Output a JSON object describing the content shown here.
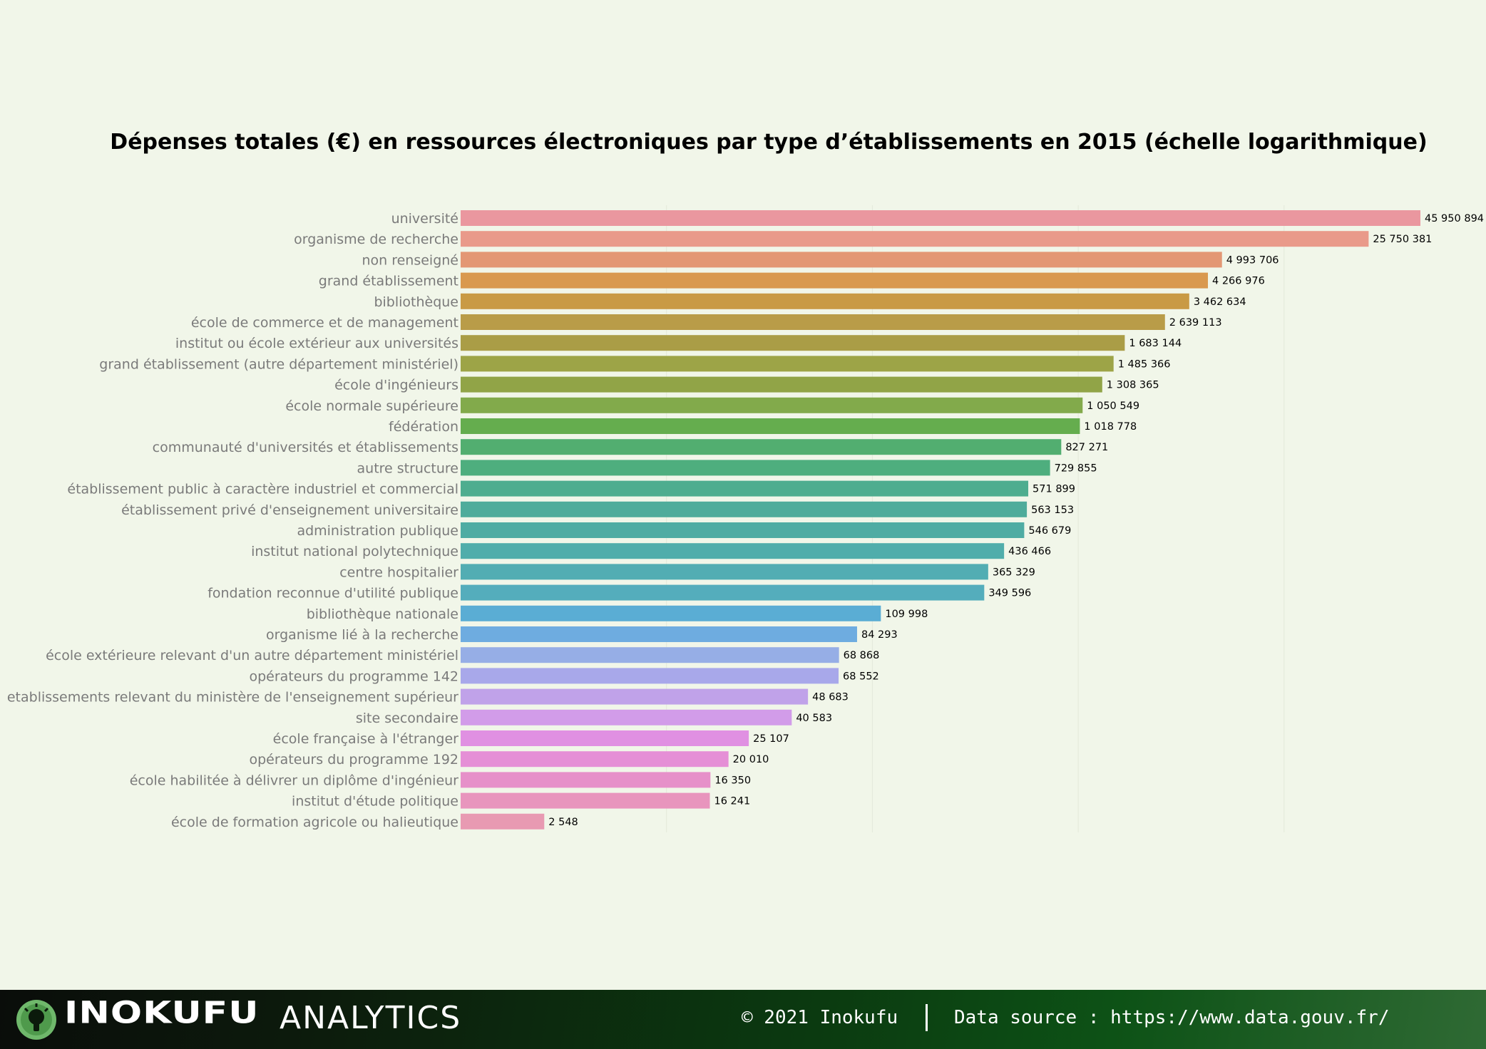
{
  "chart_data": {
    "type": "bar",
    "orientation": "horizontal",
    "scale": "log",
    "title": "Dépenses totales (€) en ressources électroniques par type d’établissements en 2015 (échelle logarithmique)",
    "xlabel": "",
    "ylabel": "",
    "grid": true,
    "categories": [
      "université",
      "organisme de recherche",
      "non renseigné",
      "grand établissement",
      "bibliothèque",
      "école de commerce et de management",
      "institut ou école extérieur aux universités",
      "grand établissement (autre département ministériel)",
      "école d'ingénieurs",
      "école normale supérieure",
      "fédération",
      "communauté d'universités et établissements",
      "autre structure",
      "établissement public à caractère industriel et commercial",
      "établissement privé d'enseignement universitaire",
      "administration publique",
      "institut national polytechnique",
      "centre hospitalier",
      "fondation reconnue d'utilité publique",
      "bibliothèque nationale",
      "organisme lié à la recherche",
      "école extérieure relevant d'un autre département ministériel",
      "opérateurs du programme 142",
      "etablissements relevant du ministère de l'enseignement supérieur",
      "site secondaire",
      "école française à l'étranger",
      "opérateurs du programme 192",
      "école habilitée à délivrer un diplôme d'ingénieur",
      "institut d'étude politique",
      "école de formation agricole ou halieutique"
    ],
    "values": [
      45950894,
      25750381,
      4993706,
      4266976,
      3462634,
      2639113,
      1683144,
      1485366,
      1308365,
      1050549,
      1018778,
      827271,
      729855,
      571899,
      563153,
      546679,
      436466,
      365329,
      349596,
      109998,
      84293,
      68868,
      68552,
      48683,
      40583,
      25107,
      20010,
      16350,
      16241,
      2548
    ],
    "value_labels": [
      "45 950 894",
      "25 750 381",
      "4 993 706",
      "4 266 976",
      "3 462 634",
      "2 639 113",
      "1 683 144",
      "1 485 366",
      "1 308 365",
      "1 050 549",
      "1 018 778",
      "827 271",
      "729 855",
      "571 899",
      "563 153",
      "546 679",
      "436 466",
      "365 329",
      "349 596",
      "109 998",
      "84 293",
      "68 868",
      "68 552",
      "48 683",
      "40 583",
      "25 107",
      "20 010",
      "16 350",
      "16 241",
      "2 548"
    ],
    "colors": [
      "#ea979f",
      "#e99a8a",
      "#e39774",
      "#d9994f",
      "#c99a45",
      "#b99c48",
      "#aa9d46",
      "#9da447",
      "#91a447",
      "#82aa4b",
      "#65ad4e",
      "#52ae70",
      "#4eae7e",
      "#4ead8f",
      "#4eac9b",
      "#4faca3",
      "#50adab",
      "#52adb3",
      "#54adbc",
      "#5aadd4",
      "#6eace0",
      "#96aee6",
      "#a8a8ea",
      "#c0a2e9",
      "#d29ce9",
      "#e090e2",
      "#e58fd6",
      "#e690c9",
      "#e895bd",
      "#e89ab2"
    ],
    "xlim_log": [
      1000,
      50000000
    ],
    "gridlines_at": [
      10000,
      100000,
      1000000,
      10000000
    ]
  },
  "footer": {
    "brand_name": "INOKUFU",
    "brand_sub": "ANALYTICS",
    "copyright": "© 2021 Inokufu",
    "data_source": "Data source : https://www.data.gouv.fr/"
  }
}
